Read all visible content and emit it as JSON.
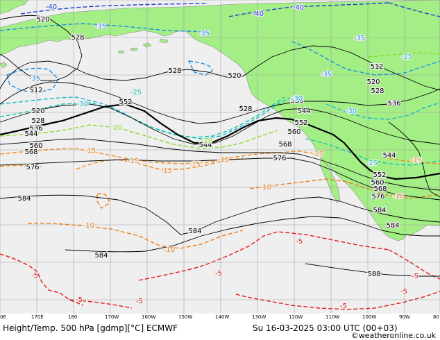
{
  "footer": {
    "title_left": "Height/Temp. 500 hPa [gdmp][°C] ECMWF",
    "title_right": "Su 16-03-2025 03:00 UTC (00+03)",
    "credit": "©weatheronline.co.uk",
    "lon_labels": [
      "0E",
      "170E",
      "180",
      "170W",
      "160W",
      "150W",
      "140W",
      "130W",
      "120W",
      "110W",
      "100W",
      "90W",
      "80"
    ]
  },
  "colors": {
    "ocean": "#efefef",
    "land": "#a4ee86",
    "land_border": "#8a8a8a",
    "grid": "#a0a0a0",
    "height_contour": "#000000",
    "temp_m40": "#1f3bd6",
    "temp_m35": "#1c8fe6",
    "temp_m30": "#17b5d0",
    "temp_m25": "#16c7aa",
    "temp_m20": "#8ed82e",
    "temp_m15": "#f08c1e",
    "temp_m10": "#ec7d1a",
    "temp_m5": "#e01a1a"
  },
  "height_labels": [
    {
      "id": "h520a",
      "text": "520"
    },
    {
      "id": "h528a",
      "text": "528"
    },
    {
      "id": "h512a",
      "text": "512"
    },
    {
      "id": "h520b",
      "text": "520"
    },
    {
      "id": "h528b",
      "text": "528"
    },
    {
      "id": "h536a",
      "text": "536"
    },
    {
      "id": "h544a",
      "text": "544"
    },
    {
      "id": "h560a",
      "text": "560"
    },
    {
      "id": "h568a",
      "text": "568"
    },
    {
      "id": "h576a",
      "text": "576"
    },
    {
      "id": "h584a",
      "text": "584"
    },
    {
      "id": "h528c",
      "text": "528"
    },
    {
      "id": "h520c",
      "text": "520"
    },
    {
      "id": "h552a",
      "text": "552"
    },
    {
      "id": "h528d",
      "text": "528"
    },
    {
      "id": "h536b",
      "text": "536"
    },
    {
      "id": "h544b",
      "text": "544"
    },
    {
      "id": "h552b",
      "text": "552"
    },
    {
      "id": "h560b",
      "text": "560"
    },
    {
      "id": "h568b",
      "text": "568"
    },
    {
      "id": "h576b",
      "text": "576"
    },
    {
      "id": "h544c",
      "text": "544"
    },
    {
      "id": "h512b",
      "text": "512"
    },
    {
      "id": "h520d",
      "text": "520"
    },
    {
      "id": "h528e",
      "text": "528"
    },
    {
      "id": "h536c",
      "text": "536"
    },
    {
      "id": "h544d",
      "text": "544"
    },
    {
      "id": "h552c",
      "text": "552"
    },
    {
      "id": "h560c",
      "text": "560"
    },
    {
      "id": "h568c",
      "text": "568"
    },
    {
      "id": "h576c",
      "text": "576"
    },
    {
      "id": "h584b",
      "text": "584"
    },
    {
      "id": "h584c",
      "text": "584"
    },
    {
      "id": "h584d",
      "text": "584"
    },
    {
      "id": "h584e",
      "text": "584"
    },
    {
      "id": "h588",
      "text": "588"
    }
  ],
  "temp_labels": [
    {
      "id": "t40a",
      "text": "-40",
      "level": "m40"
    },
    {
      "id": "t40b",
      "text": "-40",
      "level": "m40"
    },
    {
      "id": "t40c",
      "text": "-40",
      "level": "m40"
    },
    {
      "id": "t35a",
      "text": "-35",
      "level": "m35"
    },
    {
      "id": "t35b",
      "text": "-35",
      "level": "m35"
    },
    {
      "id": "t35c",
      "text": "-35",
      "level": "m35"
    },
    {
      "id": "t35d",
      "text": "-35",
      "level": "m35"
    },
    {
      "id": "t35e",
      "text": "-35",
      "level": "m35"
    },
    {
      "id": "t30a",
      "text": "-30",
      "level": "m30"
    },
    {
      "id": "t30b",
      "text": "-30",
      "level": "m30"
    },
    {
      "id": "t30c",
      "text": "-30",
      "level": "m30"
    },
    {
      "id": "t25a",
      "text": "-25",
      "level": "m25"
    },
    {
      "id": "t25b",
      "text": "-25",
      "level": "m25"
    },
    {
      "id": "t25c",
      "text": "-25",
      "level": "m25"
    },
    {
      "id": "t20a",
      "text": "-20",
      "level": "m20"
    },
    {
      "id": "t20b",
      "text": "-20",
      "level": "m20"
    },
    {
      "id": "t15a",
      "text": "-15",
      "level": "m15"
    },
    {
      "id": "t15b",
      "text": "-15",
      "level": "m15"
    },
    {
      "id": "t15c",
      "text": "-15",
      "level": "m15"
    },
    {
      "id": "t15d",
      "text": "-15",
      "level": "m15"
    },
    {
      "id": "t15e",
      "text": "-15",
      "level": "m15"
    },
    {
      "id": "t15f",
      "text": "-15",
      "level": "m15"
    },
    {
      "id": "t15g",
      "text": "-15",
      "level": "m15"
    },
    {
      "id": "t10a",
      "text": "-10",
      "level": "m10"
    },
    {
      "id": "t10b",
      "text": "-10",
      "level": "m10"
    },
    {
      "id": "t10c",
      "text": "-10",
      "level": "m10"
    },
    {
      "id": "t10d",
      "text": "-10",
      "level": "m10"
    },
    {
      "id": "t5a",
      "text": "-5",
      "level": "m5"
    },
    {
      "id": "t5b",
      "text": "-5",
      "level": "m5"
    },
    {
      "id": "t5c",
      "text": "-5",
      "level": "m5"
    },
    {
      "id": "t5d",
      "text": "-5",
      "level": "m5"
    },
    {
      "id": "t5e",
      "text": "-5",
      "level": "m5"
    },
    {
      "id": "t5f",
      "text": "-5",
      "level": "m5"
    },
    {
      "id": "t5g",
      "text": "-5",
      "level": "m5"
    },
    {
      "id": "t5h",
      "text": "-5",
      "level": "m5"
    }
  ]
}
